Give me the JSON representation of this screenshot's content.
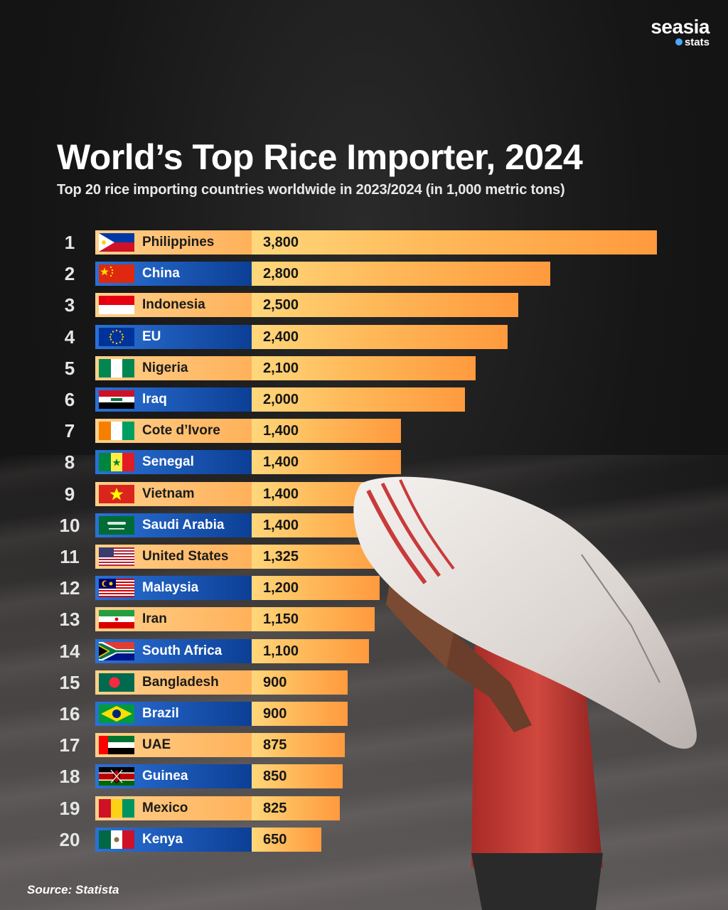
{
  "brand": {
    "name": "seasia",
    "sub": "stats",
    "accent": "#4aa8ff"
  },
  "header": {
    "title": "World’s Top Rice Importer, 2024",
    "subtitle": "Top 20 rice importing countries worldwide in 2023/2024 (in 1,000 metric tons)"
  },
  "source": "Source: Statista",
  "colors": {
    "bar_light": "#ffd77b",
    "bar_dark": "#ff9a3e",
    "label_orange": "#ffb15a",
    "label_blue": "#0c3f95"
  },
  "chart_data": {
    "type": "bar",
    "orientation": "horizontal",
    "title": "World’s Top Rice Importer, 2024",
    "subtitle": "Top 20 rice importing countries worldwide in 2023/2024 (in 1,000 metric tons)",
    "xlim": [
      0,
      3800
    ],
    "grid": false,
    "rows": [
      {
        "rank": "1",
        "country": "Philippines",
        "value": 3800,
        "label": "3,800",
        "flag": "philippines-flag-icon"
      },
      {
        "rank": "2",
        "country": "China",
        "value": 2800,
        "label": "2,800",
        "flag": "china-flag-icon"
      },
      {
        "rank": "3",
        "country": "Indonesia",
        "value": 2500,
        "label": "2,500",
        "flag": "indonesia-flag-icon"
      },
      {
        "rank": "4",
        "country": "EU",
        "value": 2400,
        "label": "2,400",
        "flag": "eu-flag-icon"
      },
      {
        "rank": "5",
        "country": "Nigeria",
        "value": 2100,
        "label": "2,100",
        "flag": "nigeria-flag-icon"
      },
      {
        "rank": "6",
        "country": "Iraq",
        "value": 2000,
        "label": "2,000",
        "flag": "iraq-flag-icon"
      },
      {
        "rank": "7",
        "country": "Cote d’Ivore",
        "value": 1400,
        "label": "1,400",
        "flag": "cote-divoire-flag-icon"
      },
      {
        "rank": "8",
        "country": "Senegal",
        "value": 1400,
        "label": "1,400",
        "flag": "senegal-flag-icon"
      },
      {
        "rank": "9",
        "country": "Vietnam",
        "value": 1400,
        "label": "1,400",
        "flag": "vietnam-flag-icon"
      },
      {
        "rank": "10",
        "country": "Saudi Arabia",
        "value": 1400,
        "label": "1,400",
        "flag": "saudi-arabia-flag-icon"
      },
      {
        "rank": "11",
        "country": "United States",
        "value": 1325,
        "label": "1,325",
        "flag": "united-states-flag-icon"
      },
      {
        "rank": "12",
        "country": "Malaysia",
        "value": 1200,
        "label": "1,200",
        "flag": "malaysia-flag-icon"
      },
      {
        "rank": "13",
        "country": "Iran",
        "value": 1150,
        "label": "1,150",
        "flag": "iran-flag-icon"
      },
      {
        "rank": "14",
        "country": "South Africa",
        "value": 1100,
        "label": "1,100",
        "flag": "south-africa-flag-icon"
      },
      {
        "rank": "15",
        "country": "Bangladesh",
        "value": 900,
        "label": "900",
        "flag": "bangladesh-flag-icon"
      },
      {
        "rank": "16",
        "country": "Brazil",
        "value": 900,
        "label": "900",
        "flag": "brazil-flag-icon"
      },
      {
        "rank": "17",
        "country": "UAE",
        "value": 875,
        "label": "875",
        "flag": "uae-flag-icon"
      },
      {
        "rank": "18",
        "country": "Guinea",
        "value": 850,
        "label": "850",
        "flag": "kenya-style-flag-icon"
      },
      {
        "rank": "19",
        "country": "Mexico",
        "value": 825,
        "label": "825",
        "flag": "guinea-style-flag-icon"
      },
      {
        "rank": "20",
        "country": "Kenya",
        "value": 650,
        "label": "650",
        "flag": "mexico-style-flag-icon"
      }
    ]
  }
}
